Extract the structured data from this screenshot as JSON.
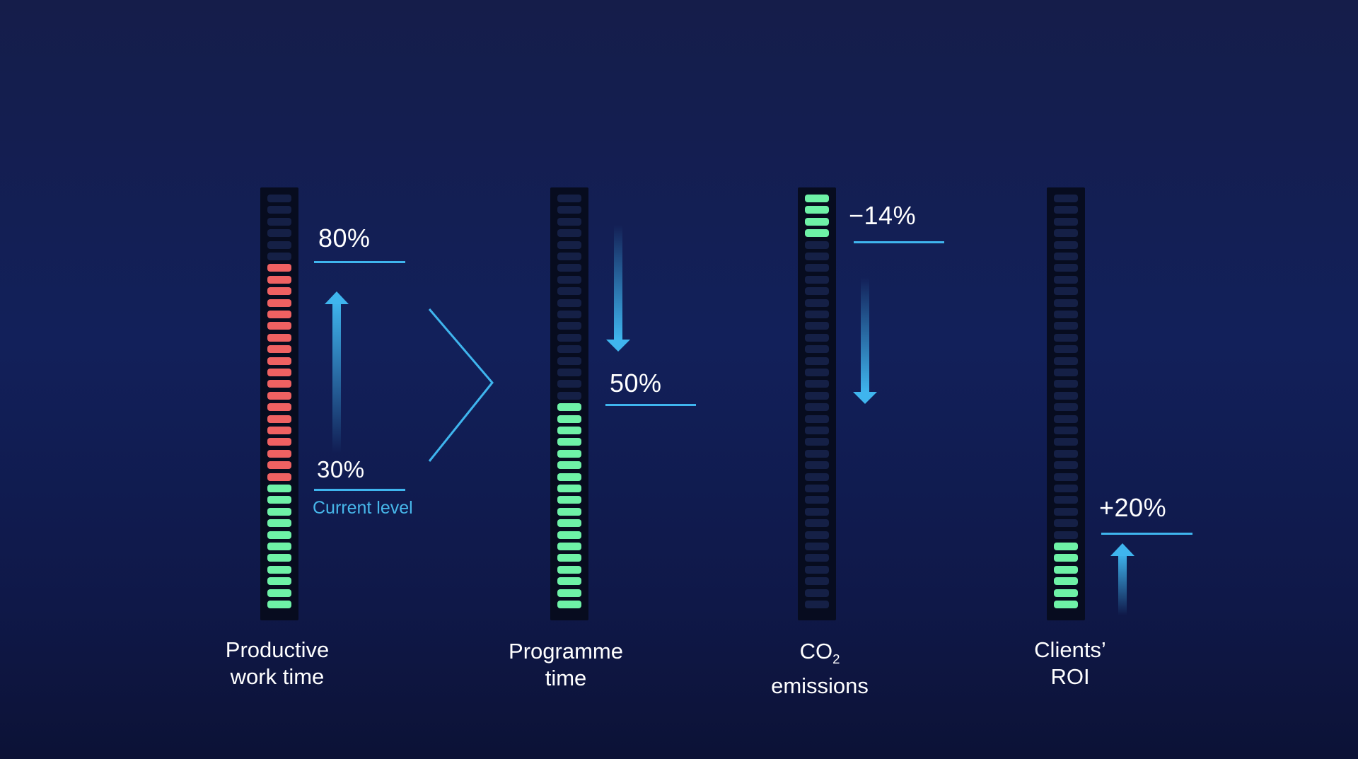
{
  "colors": {
    "background": "#12205a",
    "segment_off": "#152046",
    "segment_red": "#f06162",
    "segment_green": "#6ef2a7",
    "accent": "#3fb5ee"
  },
  "meters": [
    {
      "id": "productive-work-time",
      "caption_line1": "Productive",
      "caption_line2": "work time",
      "segments_total": 36,
      "red_segments": 19,
      "green_segments": 11,
      "target_label": "80%",
      "current_label": "30%",
      "current_note": "Current level",
      "arrow": "up-icon"
    },
    {
      "id": "programme-time",
      "caption_line1": "Programme",
      "caption_line2": "time",
      "segments_total": 36,
      "red_segments": 0,
      "green_segments": 18,
      "target_label": "50%",
      "arrow": "down-icon"
    },
    {
      "id": "co2-emissions",
      "caption_line1_main": "CO",
      "caption_line1_sub": "2",
      "caption_line2": "emissions",
      "segments_total": 36,
      "red_segments": 0,
      "green_segments_top": 4,
      "target_label": "−14%",
      "arrow": "down-icon"
    },
    {
      "id": "clients-roi",
      "caption_line1": "Clients’",
      "caption_line2": "ROI",
      "segments_total": 36,
      "red_segments": 0,
      "green_segments": 6,
      "target_label": "+20%",
      "arrow": "up-icon"
    }
  ],
  "connector": "chevron-right-icon"
}
